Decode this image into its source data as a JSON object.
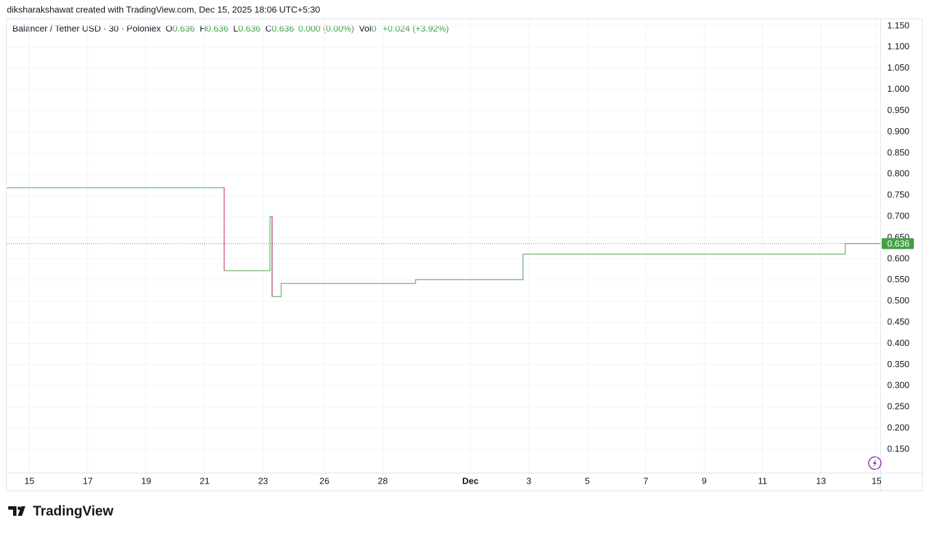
{
  "chart_data": {
    "type": "step",
    "attribution": "diksharakshawat created with TradingView.com, Dec 15, 2025 18:06 UTC+5:30",
    "title": "Balancer / Tether USD · 30 · Poloniex",
    "legend_items": [
      {
        "label": "O",
        "value": "0.636"
      },
      {
        "label": "H",
        "value": "0.636"
      },
      {
        "label": "L",
        "value": "0.636"
      },
      {
        "label": "C",
        "value": "0.636"
      }
    ],
    "change": "0.000 (0.00%)",
    "volume_label": "Vol",
    "volume": "0",
    "day_change": "+0.024 (+3.92%)",
    "brand": "TradingView",
    "up_color": "#43a047",
    "down_color": "#c2185b",
    "last_price": 0.636,
    "grid": true,
    "x": [
      -0.77,
      6.67,
      8.24,
      8.31,
      8.62,
      13.22,
      16.9,
      27.93,
      29.13
    ],
    "values": [
      0.768,
      0.572,
      0.7,
      0.511,
      0.542,
      0.551,
      0.611,
      0.636,
      0.636
    ],
    "xlim": [
      -0.77,
      29.13
    ],
    "xticks": [
      {
        "value": 0,
        "label": "15"
      },
      {
        "value": 2,
        "label": "17"
      },
      {
        "value": 4,
        "label": "19"
      },
      {
        "value": 6,
        "label": "21"
      },
      {
        "value": 8,
        "label": "23"
      },
      {
        "value": 10.1,
        "label": "26"
      },
      {
        "value": 12.1,
        "label": "28"
      },
      {
        "value": 15.1,
        "label": "Dec"
      },
      {
        "value": 17.1,
        "label": "3"
      },
      {
        "value": 19.1,
        "label": "5"
      },
      {
        "value": 21.1,
        "label": "7"
      },
      {
        "value": 23.1,
        "label": "9"
      },
      {
        "value": 25.1,
        "label": "11"
      },
      {
        "value": 27.1,
        "label": "13"
      },
      {
        "value": 29.0,
        "label": "15"
      }
    ],
    "ylim": [
      0.095,
      1.166
    ],
    "yticks": [
      {
        "value": 0.15,
        "label": "0.150"
      },
      {
        "value": 0.2,
        "label": "0.200"
      },
      {
        "value": 0.25,
        "label": "0.250"
      },
      {
        "value": 0.3,
        "label": "0.300"
      },
      {
        "value": 0.35,
        "label": "0.350"
      },
      {
        "value": 0.4,
        "label": "0.400"
      },
      {
        "value": 0.45,
        "label": "0.450"
      },
      {
        "value": 0.5,
        "label": "0.500"
      },
      {
        "value": 0.55,
        "label": "0.550"
      },
      {
        "value": 0.6,
        "label": "0.600"
      },
      {
        "value": 0.65,
        "label": "0.650"
      },
      {
        "value": 0.7,
        "label": "0.700"
      },
      {
        "value": 0.75,
        "label": "0.750"
      },
      {
        "value": 0.8,
        "label": "0.800"
      },
      {
        "value": 0.85,
        "label": "0.850"
      },
      {
        "value": 0.9,
        "label": "0.900"
      },
      {
        "value": 0.95,
        "label": "0.950"
      },
      {
        "value": 1.0,
        "label": "1.000"
      },
      {
        "value": 1.05,
        "label": "1.050"
      },
      {
        "value": 1.1,
        "label": "1.100"
      },
      {
        "value": 1.15,
        "label": "1.150"
      }
    ]
  }
}
